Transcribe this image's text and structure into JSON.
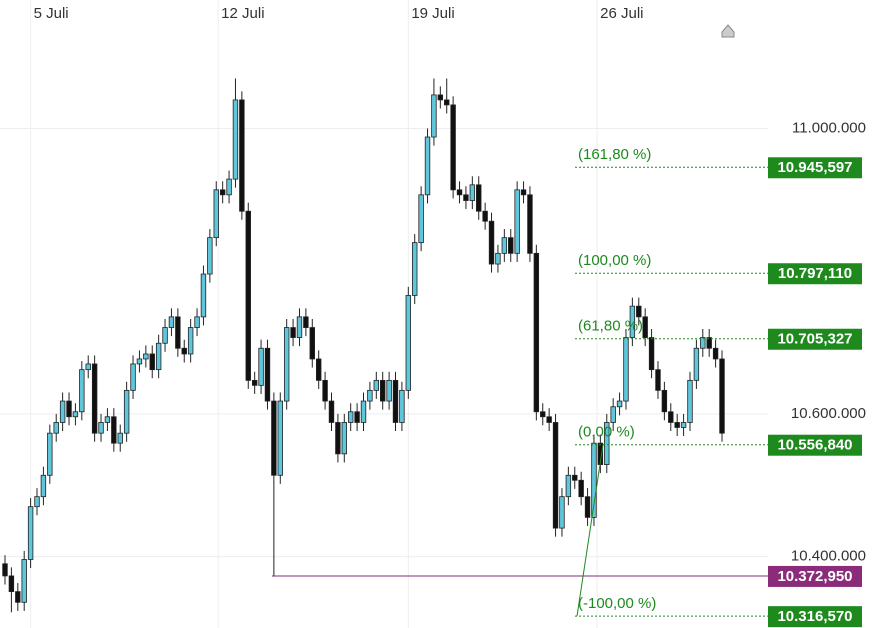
{
  "chart_data": {
    "type": "candlestick",
    "up_color": "#5fc6dc",
    "down_color": "#111111",
    "xlim": [
      0,
      112
    ],
    "xticks": [
      {
        "value": 4,
        "label": "5 Juli"
      },
      {
        "value": 33.3,
        "label": "12 Juli"
      },
      {
        "value": 63,
        "label": "19 Juli"
      },
      {
        "value": 92.5,
        "label": "26 Juli"
      }
    ],
    "ylim": [
      10300,
      11180
    ],
    "yticks": [
      {
        "value": 11000,
        "label": "11.000.000"
      },
      {
        "value": 10600,
        "label": "10.600.000"
      },
      {
        "value": 10400,
        "label": "10.400.000"
      }
    ],
    "grid": true,
    "open": [
      10390,
      10373,
      10351,
      10336,
      10396,
      10470,
      10484,
      10514,
      10573,
      10588,
      10618,
      10596,
      10603,
      10662,
      10670,
      10573,
      10588,
      10596,
      10559,
      10573,
      10633,
      10670,
      10677,
      10684,
      10662,
      10699,
      10721,
      10736,
      10692,
      10684,
      10721,
      10736,
      10796,
      10847,
      10914,
      10907,
      10929,
      11040,
      10884,
      10647,
      10640,
      10692,
      10618,
      10514,
      10618,
      10721,
      10707,
      10736,
      10721,
      10677,
      10647,
      10618,
      10588,
      10544,
      10588,
      10603,
      10588,
      10618,
      10633,
      10647,
      10618,
      10647,
      10588,
      10633,
      10766,
      10840,
      10907,
      10988,
      11047,
      11040,
      11033,
      10914,
      10907,
      10899,
      10921,
      10884,
      10870,
      10810,
      10825,
      10847,
      10825,
      10914,
      10907,
      10825,
      10603,
      10596,
      10588,
      10440,
      10484,
      10514,
      10507,
      10484,
      10455,
      10559,
      10529,
      10588,
      10610,
      10618,
      10707,
      10751,
      10736,
      10707,
      10662,
      10633,
      10603,
      10588,
      10581,
      10588,
      10647,
      10692,
      10707,
      10692,
      10677
    ],
    "high": [
      10402,
      10385,
      10363,
      10408,
      10482,
      10496,
      10526,
      10585,
      10600,
      10630,
      10630,
      10615,
      10674,
      10682,
      10682,
      10600,
      10608,
      10608,
      10585,
      10645,
      10682,
      10689,
      10696,
      10696,
      10711,
      10733,
      10748,
      10748,
      10704,
      10733,
      10748,
      10808,
      10859,
      10926,
      10926,
      10941,
      11070,
      11052,
      10896,
      10659,
      10704,
      10704,
      10630,
      10630,
      10733,
      10733,
      10748,
      10748,
      10733,
      10689,
      10659,
      10630,
      10600,
      10600,
      10615,
      10615,
      10630,
      10645,
      10659,
      10659,
      10659,
      10659,
      10645,
      10778,
      10852,
      10919,
      11000,
      11070,
      11059,
      11070,
      11045,
      10926,
      10919,
      10933,
      10933,
      10896,
      10882,
      10837,
      10859,
      10859,
      10926,
      10926,
      10919,
      10837,
      10615,
      10608,
      10600,
      10496,
      10526,
      10526,
      10519,
      10496,
      10571,
      10571,
      10600,
      10622,
      10630,
      10719,
      10763,
      10763,
      10748,
      10719,
      10674,
      10645,
      10615,
      10600,
      10600,
      10659,
      10704,
      10719,
      10719,
      10704,
      10689
    ],
    "low": [
      10361,
      10322,
      10324,
      10324,
      10384,
      10458,
      10472,
      10502,
      10561,
      10576,
      10584,
      10584,
      10591,
      10650,
      10561,
      10561,
      10576,
      10547,
      10547,
      10561,
      10621,
      10658,
      10665,
      10650,
      10650,
      10687,
      10709,
      10680,
      10672,
      10672,
      10709,
      10724,
      10784,
      10835,
      10895,
      10895,
      10917,
      10872,
      10635,
      10628,
      10628,
      10606,
      10372,
      10502,
      10606,
      10695,
      10695,
      10709,
      10665,
      10635,
      10606,
      10576,
      10532,
      10532,
      10576,
      10576,
      10576,
      10606,
      10621,
      10606,
      10606,
      10576,
      10576,
      10621,
      10754,
      10828,
      10895,
      10976,
      11028,
      11021,
      10902,
      10895,
      10887,
      10887,
      10872,
      10858,
      10798,
      10798,
      10813,
      10813,
      10813,
      10895,
      10813,
      10591,
      10584,
      10576,
      10428,
      10428,
      10472,
      10495,
      10472,
      10443,
      10443,
      10517,
      10517,
      10576,
      10598,
      10606,
      10695,
      10724,
      10695,
      10650,
      10621,
      10591,
      10576,
      10569,
      10569,
      10576,
      10635,
      10680,
      10680,
      10665,
      10561
    ],
    "close": [
      10373,
      10351,
      10336,
      10396,
      10470,
      10484,
      10514,
      10573,
      10588,
      10618,
      10596,
      10603,
      10662,
      10670,
      10573,
      10588,
      10596,
      10559,
      10573,
      10633,
      10670,
      10677,
      10684,
      10662,
      10699,
      10721,
      10736,
      10692,
      10684,
      10721,
      10736,
      10796,
      10847,
      10914,
      10907,
      10929,
      11040,
      10884,
      10647,
      10640,
      10692,
      10618,
      10514,
      10618,
      10721,
      10707,
      10736,
      10721,
      10677,
      10647,
      10618,
      10588,
      10544,
      10588,
      10603,
      10588,
      10618,
      10633,
      10647,
      10618,
      10647,
      10588,
      10633,
      10766,
      10840,
      10907,
      10988,
      11047,
      11040,
      11033,
      10914,
      10907,
      10899,
      10921,
      10884,
      10870,
      10810,
      10825,
      10847,
      10825,
      10914,
      10907,
      10825,
      10603,
      10596,
      10588,
      10440,
      10484,
      10514,
      10507,
      10484,
      10455,
      10559,
      10529,
      10588,
      10610,
      10618,
      10707,
      10751,
      10736,
      10707,
      10662,
      10633,
      10603,
      10588,
      10581,
      10588,
      10647,
      10692,
      10707,
      10692,
      10677,
      10573
    ],
    "fib_color": "#1e8a1e",
    "fib_levels": [
      {
        "label": "(161,80 %)",
        "value": 10945.597,
        "value_label": "10.945,597"
      },
      {
        "label": "(100,00 %)",
        "value": 10797.11,
        "value_label": "10.797,110"
      },
      {
        "label": "(61,80 %)",
        "value": 10705.327,
        "value_label": "10.705,327"
      },
      {
        "label": "(0,00 %)",
        "value": 10556.84,
        "value_label": "10.556,840"
      },
      {
        "label": "(-100,00 %)",
        "value": 10316.57,
        "value_label": "10.316,570"
      }
    ],
    "level_line": {
      "value": 10372.95,
      "value_label": "10.372,950",
      "color": "#8b2c7a"
    }
  }
}
